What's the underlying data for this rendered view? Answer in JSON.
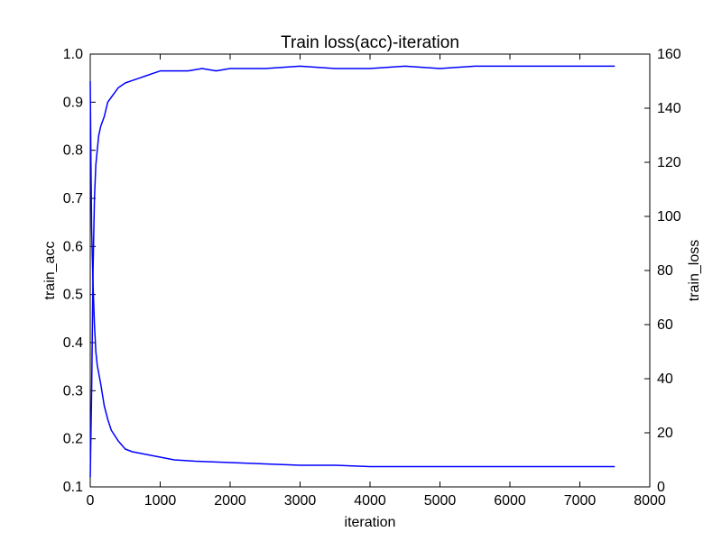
{
  "chart_data": {
    "type": "line",
    "title": "Train loss(acc)-iteration",
    "xlabel": "iteration",
    "ylabel_left": "train_acc",
    "ylabel_right": "train_loss",
    "xlim": [
      0,
      8000
    ],
    "ylim_left": [
      0.1,
      1.0
    ],
    "ylim_right": [
      0,
      160
    ],
    "x_ticks": [
      "0",
      "1000",
      "2000",
      "3000",
      "4000",
      "5000",
      "6000",
      "7000",
      "8000"
    ],
    "y_left_ticks": [
      "0.1",
      "0.2",
      "0.3",
      "0.4",
      "0.5",
      "0.6",
      "0.7",
      "0.8",
      "0.9",
      "1.0"
    ],
    "y_right_ticks": [
      "0",
      "20",
      "40",
      "60",
      "80",
      "100",
      "120",
      "140",
      "160"
    ],
    "grid": false,
    "line_color": "#0000ff",
    "series": [
      {
        "axis": "left",
        "x": [
          0,
          20,
          40,
          60,
          80,
          100,
          120,
          150,
          200,
          250,
          300,
          350,
          400,
          500,
          600,
          700,
          800,
          900,
          1000,
          1200,
          1400,
          1600,
          1800,
          2000,
          2500,
          3000,
          3500,
          4000,
          4500,
          5000,
          5500,
          6000,
          6500,
          7000,
          7500
        ],
        "y": [
          0.12,
          0.3,
          0.55,
          0.7,
          0.77,
          0.8,
          0.83,
          0.85,
          0.87,
          0.9,
          0.91,
          0.92,
          0.93,
          0.94,
          0.945,
          0.95,
          0.955,
          0.96,
          0.965,
          0.965,
          0.965,
          0.97,
          0.965,
          0.97,
          0.97,
          0.975,
          0.97,
          0.97,
          0.975,
          0.97,
          0.975,
          0.975,
          0.975,
          0.975,
          0.975
        ]
      },
      {
        "axis": "right",
        "x": [
          0,
          10,
          20,
          40,
          60,
          80,
          100,
          150,
          200,
          250,
          300,
          400,
          500,
          600,
          800,
          1000,
          1200,
          1500,
          2000,
          2500,
          3000,
          3500,
          4000,
          4500,
          5000,
          5500,
          6000,
          6500,
          7000,
          7500
        ],
        "y": [
          150,
          120,
          95,
          75,
          60,
          50,
          45,
          38,
          30,
          25,
          21,
          17,
          14,
          13,
          12,
          11,
          10,
          9.5,
          9,
          8.5,
          8,
          8,
          7.5,
          7.5,
          7.5,
          7.5,
          7.5,
          7.5,
          7.5,
          7.5
        ]
      }
    ]
  }
}
